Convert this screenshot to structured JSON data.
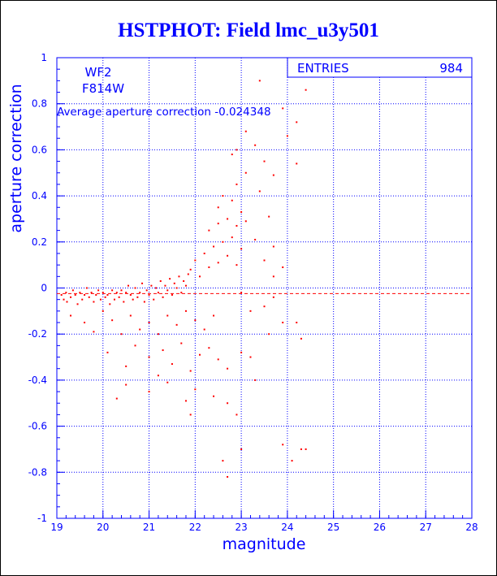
{
  "title": "HSTPHOT: Field lmc_u3y501",
  "colors": {
    "axis": "#0000ff",
    "points": "#ff0000",
    "text": "#0000ff"
  },
  "chart_data": {
    "type": "scatter",
    "title": "HSTPHOT: Field lmc_u3y501",
    "xlabel": "magnitude",
    "ylabel": "aperture correction",
    "xlim": [
      19,
      28
    ],
    "ylim": [
      -1,
      1
    ],
    "x_ticks": [
      19,
      20,
      21,
      22,
      23,
      24,
      25,
      26,
      27,
      28
    ],
    "y_ticks": [
      -1,
      -0.8,
      -0.6,
      -0.4,
      -0.2,
      0,
      0.2,
      0.4,
      0.6,
      0.8,
      1
    ],
    "grid": true,
    "chip": "WF2",
    "filter": "F814W",
    "annotation": "Average aperture correction  -0.024348",
    "average_correction": -0.024348,
    "stats": {
      "label": "ENTRIES",
      "value": "984"
    },
    "series": [
      {
        "points": [
          [
            19.1,
            -0.03
          ],
          [
            19.15,
            -0.05
          ],
          [
            19.2,
            -0.02
          ],
          [
            19.22,
            -0.06
          ],
          [
            19.3,
            -0.04
          ],
          [
            19.35,
            -0.01
          ],
          [
            19.4,
            -0.03
          ],
          [
            19.45,
            -0.07
          ],
          [
            19.5,
            -0.02
          ],
          [
            19.55,
            -0.05
          ],
          [
            19.6,
            -0.03
          ],
          [
            19.65,
            0.0
          ],
          [
            19.7,
            -0.04
          ],
          [
            19.75,
            -0.02
          ],
          [
            19.8,
            -0.06
          ],
          [
            19.85,
            -0.03
          ],
          [
            19.9,
            -0.01
          ],
          [
            19.95,
            -0.05
          ],
          [
            20.0,
            -0.02
          ],
          [
            20.05,
            -0.04
          ],
          [
            20.1,
            -0.03
          ],
          [
            20.15,
            -0.07
          ],
          [
            20.2,
            -0.01
          ],
          [
            20.25,
            -0.05
          ],
          [
            20.3,
            -0.02
          ],
          [
            20.35,
            -0.04
          ],
          [
            20.4,
            -0.01
          ],
          [
            20.45,
            -0.06
          ],
          [
            20.5,
            -0.02
          ],
          [
            20.55,
            0.01
          ],
          [
            20.6,
            -0.03
          ],
          [
            20.65,
            -0.05
          ],
          [
            20.7,
            0.0
          ],
          [
            20.75,
            -0.04
          ],
          [
            20.8,
            -0.02
          ],
          [
            20.85,
            0.02
          ],
          [
            20.9,
            -0.06
          ],
          [
            20.95,
            -0.01
          ],
          [
            21.0,
            -0.03
          ],
          [
            21.05,
            0.01
          ],
          [
            21.1,
            -0.05
          ],
          [
            21.15,
            0.0
          ],
          [
            21.2,
            -0.02
          ],
          [
            21.25,
            0.03
          ],
          [
            21.3,
            -0.04
          ],
          [
            21.35,
            0.01
          ],
          [
            21.4,
            -0.01
          ],
          [
            21.45,
            0.04
          ],
          [
            21.5,
            -0.03
          ],
          [
            21.55,
            0.02
          ],
          [
            21.6,
            0.0
          ],
          [
            21.65,
            0.05
          ],
          [
            21.7,
            -0.02
          ],
          [
            21.75,
            0.03
          ],
          [
            21.8,
            0.01
          ],
          [
            21.85,
            0.06
          ],
          [
            19.3,
            -0.12
          ],
          [
            19.6,
            -0.15
          ],
          [
            19.8,
            -0.19
          ],
          [
            20.0,
            -0.1
          ],
          [
            20.2,
            -0.14
          ],
          [
            20.4,
            -0.2
          ],
          [
            20.6,
            -0.12
          ],
          [
            20.8,
            -0.18
          ],
          [
            21.0,
            -0.15
          ],
          [
            21.2,
            -0.2
          ],
          [
            21.4,
            -0.12
          ],
          [
            21.6,
            -0.16
          ],
          [
            21.8,
            -0.1
          ],
          [
            22.0,
            -0.14
          ],
          [
            22.2,
            -0.18
          ],
          [
            22.4,
            -0.12
          ],
          [
            20.1,
            -0.28
          ],
          [
            20.5,
            -0.34
          ],
          [
            20.7,
            -0.25
          ],
          [
            21.0,
            -0.3
          ],
          [
            21.2,
            -0.38
          ],
          [
            21.3,
            -0.27
          ],
          [
            21.5,
            -0.33
          ],
          [
            21.7,
            -0.24
          ],
          [
            21.9,
            -0.36
          ],
          [
            22.1,
            -0.29
          ],
          [
            22.3,
            -0.26
          ],
          [
            22.5,
            -0.31
          ],
          [
            22.7,
            -0.35
          ],
          [
            23.0,
            -0.28
          ],
          [
            23.2,
            -0.3
          ],
          [
            20.3,
            -0.48
          ],
          [
            20.5,
            -0.42
          ],
          [
            21.0,
            -0.45
          ],
          [
            21.4,
            -0.41
          ],
          [
            21.8,
            -0.49
          ],
          [
            22.0,
            -0.44
          ],
          [
            22.4,
            -0.47
          ],
          [
            22.7,
            -0.5
          ],
          [
            21.9,
            -0.55
          ],
          [
            22.9,
            -0.55
          ],
          [
            22.6,
            -0.75
          ],
          [
            22.7,
            -0.82
          ],
          [
            23.0,
            -0.7
          ],
          [
            21.9,
            0.08
          ],
          [
            22.0,
            0.12
          ],
          [
            22.1,
            0.05
          ],
          [
            22.2,
            0.15
          ],
          [
            22.3,
            0.09
          ],
          [
            22.4,
            0.18
          ],
          [
            22.5,
            0.11
          ],
          [
            22.6,
            0.2
          ],
          [
            22.7,
            0.14
          ],
          [
            22.8,
            0.22
          ],
          [
            22.9,
            0.1
          ],
          [
            23.0,
            0.17
          ],
          [
            22.3,
            0.25
          ],
          [
            22.5,
            0.28
          ],
          [
            22.7,
            0.3
          ],
          [
            22.9,
            0.27
          ],
          [
            22.5,
            0.35
          ],
          [
            22.6,
            0.4
          ],
          [
            22.8,
            0.38
          ],
          [
            23.0,
            0.33
          ],
          [
            23.1,
            0.29
          ],
          [
            23.3,
            0.21
          ],
          [
            23.5,
            0.12
          ],
          [
            23.7,
            0.05
          ],
          [
            22.9,
            0.45
          ],
          [
            23.1,
            0.5
          ],
          [
            22.8,
            0.58
          ],
          [
            23.4,
            0.42
          ],
          [
            23.6,
            0.31
          ],
          [
            23.7,
            0.18
          ],
          [
            23.9,
            0.09
          ],
          [
            22.9,
            0.6
          ],
          [
            23.1,
            0.68
          ],
          [
            23.3,
            0.62
          ],
          [
            23.5,
            0.55
          ],
          [
            23.7,
            0.49
          ],
          [
            24.0,
            0.66
          ],
          [
            24.2,
            0.72
          ],
          [
            24.2,
            0.54
          ],
          [
            23.9,
            0.78
          ],
          [
            24.4,
            0.86
          ],
          [
            23.4,
            0.9
          ],
          [
            23.7,
            -0.04
          ],
          [
            23.6,
            -0.2
          ],
          [
            23.9,
            -0.15
          ],
          [
            24.2,
            -0.15
          ],
          [
            24.3,
            -0.22
          ],
          [
            23.3,
            -0.4
          ],
          [
            23.9,
            -0.68
          ],
          [
            24.1,
            -0.75
          ],
          [
            24.3,
            -0.7
          ],
          [
            24.4,
            -0.7
          ],
          [
            23.5,
            -0.08
          ],
          [
            23.2,
            -0.1
          ],
          [
            23.0,
            -0.02
          ]
        ]
      }
    ]
  }
}
